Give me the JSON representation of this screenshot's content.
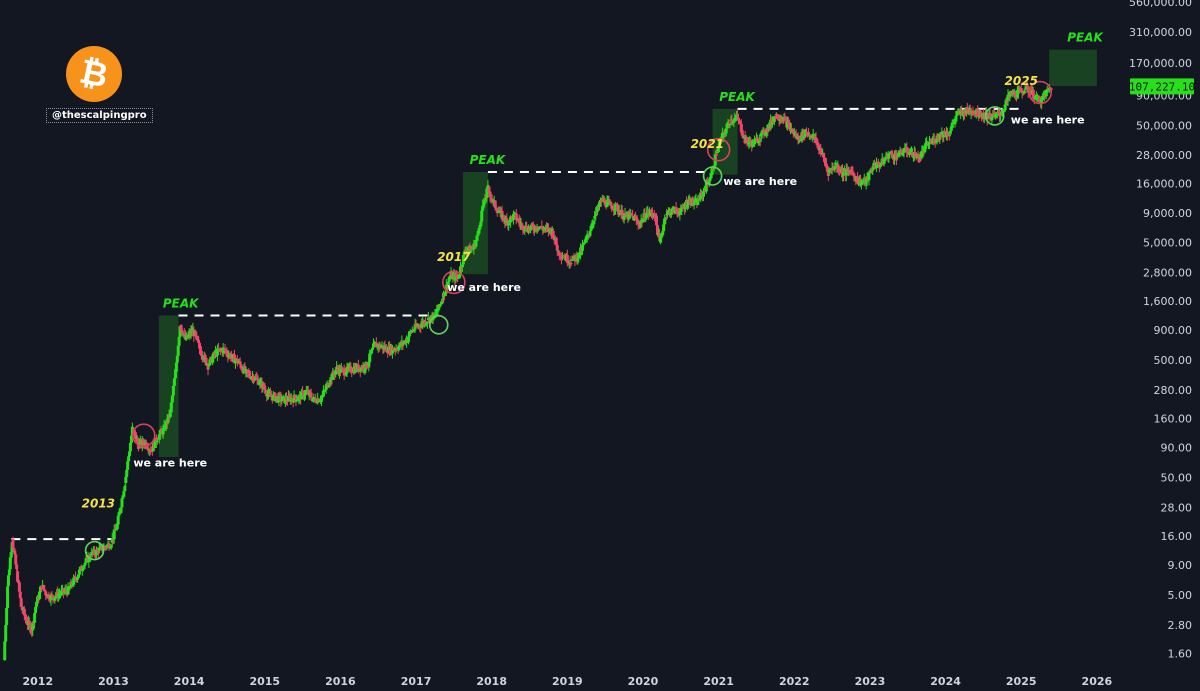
{
  "brand": {
    "logo_icon": "bitcoin-icon",
    "logo_glyph": "₿",
    "logo_color": "#f7931a",
    "handle": "@thescalpingpro"
  },
  "colors": {
    "background": "#131722",
    "up": "#26e01a",
    "down": "#f0466a",
    "peak_zone": "#1b4a22",
    "dashed_line": "#ffffff",
    "circle_green": "#5fd45a",
    "circle_red": "#d9435a",
    "label_green": "#26e01a",
    "label_yellow": "#f2e24a"
  },
  "chart_data": {
    "type": "line",
    "style": "candlestick-like",
    "scale": "log",
    "title": "",
    "xlabel": "",
    "ylabel": "",
    "x_ticks": [
      "2012",
      "2013",
      "2014",
      "2015",
      "2016",
      "2017",
      "2018",
      "2019",
      "2020",
      "2021",
      "2022",
      "2023",
      "2024",
      "2025",
      "2026"
    ],
    "y_ticks": [
      "560,000.00",
      "310,000.00",
      "170,000.00",
      "90,000.00",
      "50,000.00",
      "28,000.00",
      "16,000.00",
      "9,000.00",
      "5,000.00",
      "2,800.00",
      "1,600.00",
      "900.00",
      "500.00",
      "280.00",
      "160.00",
      "90.00",
      "50.00",
      "28.00",
      "16.00",
      "9.00",
      "5.00",
      "2.80",
      "1.60"
    ],
    "ylim": [
      1.2,
      560000
    ],
    "xlim": [
      2011.5,
      2026.2
    ],
    "current_price": "107,227.10",
    "series": [
      {
        "points": [
          [
            2011.55,
            1.4
          ],
          [
            2011.6,
            6
          ],
          [
            2011.66,
            15
          ],
          [
            2011.72,
            8
          ],
          [
            2011.78,
            4
          ],
          [
            2011.85,
            3
          ],
          [
            2011.92,
            2.5
          ],
          [
            2011.97,
            4
          ],
          [
            2012.05,
            6
          ],
          [
            2012.12,
            5
          ],
          [
            2012.2,
            4.8
          ],
          [
            2012.3,
            5.2
          ],
          [
            2012.4,
            5.5
          ],
          [
            2012.5,
            7
          ],
          [
            2012.6,
            9
          ],
          [
            2012.7,
            11
          ],
          [
            2012.8,
            12
          ],
          [
            2012.9,
            13
          ],
          [
            2012.97,
            14
          ],
          [
            2013.05,
            20
          ],
          [
            2013.15,
            45
          ],
          [
            2013.25,
            130
          ],
          [
            2013.33,
            95
          ],
          [
            2013.42,
            100
          ],
          [
            2013.5,
            85
          ],
          [
            2013.58,
            110
          ],
          [
            2013.67,
            130
          ],
          [
            2013.75,
            180
          ],
          [
            2013.82,
            400
          ],
          [
            2013.88,
            1000
          ],
          [
            2013.95,
            750
          ],
          [
            2014.05,
            900
          ],
          [
            2014.15,
            600
          ],
          [
            2014.25,
            450
          ],
          [
            2014.35,
            580
          ],
          [
            2014.45,
            620
          ],
          [
            2014.55,
            540
          ],
          [
            2014.65,
            480
          ],
          [
            2014.75,
            390
          ],
          [
            2014.85,
            360
          ],
          [
            2014.95,
            320
          ],
          [
            2015.05,
            250
          ],
          [
            2015.15,
            240
          ],
          [
            2015.25,
            230
          ],
          [
            2015.35,
            235
          ],
          [
            2015.45,
            240
          ],
          [
            2015.55,
            270
          ],
          [
            2015.65,
            230
          ],
          [
            2015.75,
            240
          ],
          [
            2015.85,
            330
          ],
          [
            2015.95,
            420
          ],
          [
            2016.05,
            400
          ],
          [
            2016.15,
            420
          ],
          [
            2016.25,
            430
          ],
          [
            2016.35,
            450
          ],
          [
            2016.45,
            680
          ],
          [
            2016.55,
            650
          ],
          [
            2016.65,
            610
          ],
          [
            2016.75,
            640
          ],
          [
            2016.85,
            720
          ],
          [
            2016.95,
            900
          ],
          [
            2017.05,
            1000
          ],
          [
            2017.15,
            1100
          ],
          [
            2017.25,
            1200
          ],
          [
            2017.35,
            1700
          ],
          [
            2017.45,
            2600
          ],
          [
            2017.55,
            2500
          ],
          [
            2017.65,
            4300
          ],
          [
            2017.75,
            4400
          ],
          [
            2017.82,
            6000
          ],
          [
            2017.88,
            10000
          ],
          [
            2017.95,
            14500
          ],
          [
            2018.02,
            11000
          ],
          [
            2018.1,
            9000
          ],
          [
            2018.2,
            7500
          ],
          [
            2018.3,
            8500
          ],
          [
            2018.4,
            7000
          ],
          [
            2018.5,
            6500
          ],
          [
            2018.6,
            6900
          ],
          [
            2018.7,
            6500
          ],
          [
            2018.8,
            6300
          ],
          [
            2018.88,
            4200
          ],
          [
            2018.95,
            3800
          ],
          [
            2019.05,
            3500
          ],
          [
            2019.15,
            3900
          ],
          [
            2019.25,
            5300
          ],
          [
            2019.35,
            8000
          ],
          [
            2019.45,
            11500
          ],
          [
            2019.55,
            10500
          ],
          [
            2019.65,
            10000
          ],
          [
            2019.75,
            8300
          ],
          [
            2019.85,
            8500
          ],
          [
            2019.95,
            7200
          ],
          [
            2020.05,
            9000
          ],
          [
            2020.15,
            8800
          ],
          [
            2020.22,
            5000
          ],
          [
            2020.3,
            8800
          ],
          [
            2020.4,
            9500
          ],
          [
            2020.5,
            9200
          ],
          [
            2020.6,
            11500
          ],
          [
            2020.7,
            10800
          ],
          [
            2020.8,
            13500
          ],
          [
            2020.9,
            19000
          ],
          [
            2020.97,
            29000
          ],
          [
            2021.05,
            40000
          ],
          [
            2021.15,
            55000
          ],
          [
            2021.25,
            58000
          ],
          [
            2021.35,
            37000
          ],
          [
            2021.45,
            35000
          ],
          [
            2021.55,
            40000
          ],
          [
            2021.65,
            47000
          ],
          [
            2021.75,
            61000
          ],
          [
            2021.85,
            57000
          ],
          [
            2021.95,
            47000
          ],
          [
            2022.05,
            38000
          ],
          [
            2022.15,
            44000
          ],
          [
            2022.25,
            40000
          ],
          [
            2022.35,
            30000
          ],
          [
            2022.45,
            20000
          ],
          [
            2022.55,
            23000
          ],
          [
            2022.65,
            19500
          ],
          [
            2022.75,
            20500
          ],
          [
            2022.85,
            16500
          ],
          [
            2022.95,
            16600
          ],
          [
            2023.05,
            23000
          ],
          [
            2023.15,
            23500
          ],
          [
            2023.25,
            28500
          ],
          [
            2023.35,
            27000
          ],
          [
            2023.45,
            30500
          ],
          [
            2023.55,
            29500
          ],
          [
            2023.65,
            26000
          ],
          [
            2023.75,
            34000
          ],
          [
            2023.85,
            37500
          ],
          [
            2023.95,
            42500
          ],
          [
            2024.05,
            43000
          ],
          [
            2024.15,
            62000
          ],
          [
            2024.25,
            65000
          ],
          [
            2024.35,
            67000
          ],
          [
            2024.45,
            63000
          ],
          [
            2024.55,
            60000
          ],
          [
            2024.65,
            59000
          ],
          [
            2024.75,
            65000
          ],
          [
            2024.85,
            92000
          ],
          [
            2024.95,
            94000
          ],
          [
            2025.05,
            102000
          ],
          [
            2025.12,
            98000
          ],
          [
            2025.2,
            84000
          ],
          [
            2025.27,
            82000
          ],
          [
            2025.33,
            95000
          ],
          [
            2025.4,
            107227
          ]
        ]
      }
    ],
    "annotations": {
      "peaks": [
        {
          "label": "PEAK",
          "x0": 2013.6,
          "x1": 2013.86,
          "y0": 75,
          "y1": 1200
        },
        {
          "label": "PEAK",
          "x0": 2017.62,
          "x1": 2017.95,
          "y0": 2700,
          "y1": 20000
        },
        {
          "label": "PEAK",
          "x0": 2020.92,
          "x1": 2021.25,
          "y0": 19000,
          "y1": 69000
        },
        {
          "label": "PEAK",
          "x0": 2025.37,
          "x1": 2026.0,
          "y0": 108000,
          "y1": 220000
        }
      ],
      "dashed_levels": [
        {
          "x0": 2011.65,
          "x1": 2013.0,
          "y": 15
        },
        {
          "x0": 2013.86,
          "x1": 2017.3,
          "y": 1200
        },
        {
          "x0": 2017.95,
          "x1": 2020.92,
          "y": 20000
        },
        {
          "x0": 2021.25,
          "x1": 2025.0,
          "y": 69000
        }
      ],
      "year_labels": [
        {
          "label": "2013",
          "x": 2012.8,
          "y": 28
        },
        {
          "label": "2017",
          "x": 2017.5,
          "y": 3500
        },
        {
          "label": "2021",
          "x": 2020.85,
          "y": 32000
        },
        {
          "label": "2025",
          "x": 2025.0,
          "y": 110000
        }
      ],
      "circles": [
        {
          "x": 2012.75,
          "y": 12,
          "color": "green"
        },
        {
          "x": 2013.4,
          "y": 115,
          "color": "red"
        },
        {
          "x": 2017.3,
          "y": 1000,
          "color": "green"
        },
        {
          "x": 2017.5,
          "y": 2300,
          "color": "red"
        },
        {
          "x": 2020.92,
          "y": 18500,
          "color": "green"
        },
        {
          "x": 2021.0,
          "y": 31000,
          "color": "red"
        },
        {
          "x": 2024.65,
          "y": 60000,
          "color": "green"
        },
        {
          "x": 2025.25,
          "y": 95000,
          "color": "red"
        }
      ],
      "we_are_here": [
        {
          "label": "we are here",
          "x": 2013.75,
          "y": 62
        },
        {
          "label": "we are here",
          "x": 2017.9,
          "y": 1950
        },
        {
          "label": "we are here",
          "x": 2021.55,
          "y": 15500
        },
        {
          "label": "we are here",
          "x": 2025.35,
          "y": 52000
        }
      ]
    }
  }
}
